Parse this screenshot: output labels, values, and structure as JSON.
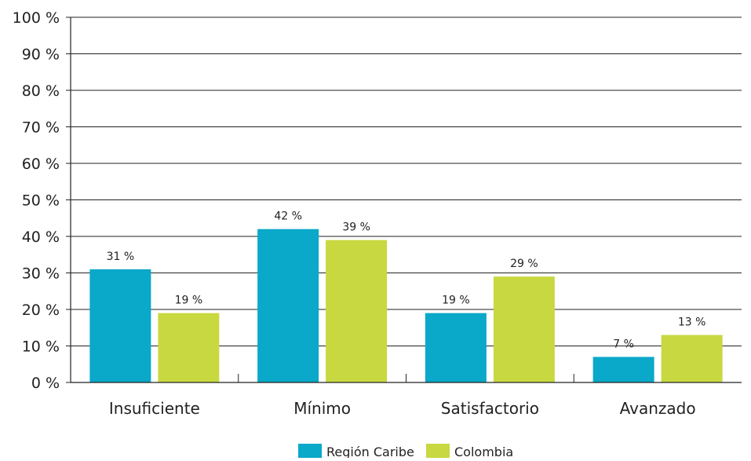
{
  "chart_data": {
    "type": "bar",
    "categories": [
      "Insuficiente",
      "Mínimo",
      "Satisfactorio",
      "Avanzado"
    ],
    "series": [
      {
        "name": "Región Caribe",
        "values": [
          31,
          42,
          19,
          7
        ],
        "labels": [
          "31 %",
          "42 %",
          "19 %",
          "7 %"
        ],
        "color": "#0aa8c9"
      },
      {
        "name": "Colombia",
        "values": [
          19,
          39,
          29,
          13
        ],
        "labels": [
          "19 %",
          "39 %",
          "29 %",
          "13 %"
        ],
        "color": "#c8d840"
      }
    ],
    "yticks": [
      {
        "value": 0,
        "label": "0 %"
      },
      {
        "value": 10,
        "label": "10 %"
      },
      {
        "value": 20,
        "label": "20 %"
      },
      {
        "value": 30,
        "label": "30 %"
      },
      {
        "value": 40,
        "label": "40 %"
      },
      {
        "value": 50,
        "label": "50 %"
      },
      {
        "value": 60,
        "label": "60 %"
      },
      {
        "value": 70,
        "label": "70 %"
      },
      {
        "value": 80,
        "label": "80 %"
      },
      {
        "value": 90,
        "label": "90 %"
      },
      {
        "value": 100,
        "label": "100 %"
      }
    ],
    "ylim": [
      0,
      100
    ],
    "title": "",
    "xlabel": "",
    "ylabel": "",
    "grid": true,
    "legend_position": "bottom-center",
    "gridline_color": "#222222"
  }
}
